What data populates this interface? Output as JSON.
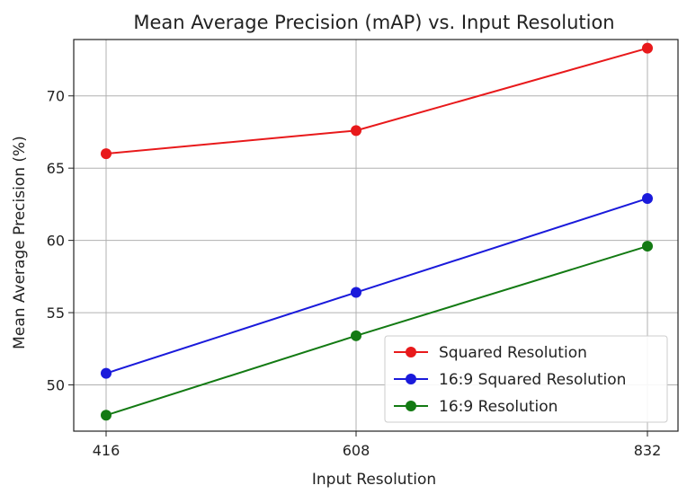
{
  "chart_data": {
    "type": "line",
    "title": "Mean Average Precision (mAP) vs. Input Resolution",
    "xlabel": "Input Resolution",
    "ylabel": "Mean Average Precision (%)",
    "categories": [
      "416",
      "608",
      "832"
    ],
    "yticks": [
      "50",
      "55",
      "60",
      "65",
      "70"
    ],
    "ytick_values": [
      50,
      55,
      60,
      65,
      70
    ],
    "ylim": [
      46.8,
      73.9
    ],
    "grid": true,
    "legend_position": "lower-right",
    "series": [
      {
        "name": "Squared Resolution",
        "values": [
          66.0,
          67.6,
          73.3
        ],
        "color": "#e8191b"
      },
      {
        "name": "16:9 Squared Resolution",
        "values": [
          50.8,
          56.4,
          62.9
        ],
        "color": "#1a1adb"
      },
      {
        "name": "16:9 Resolution",
        "values": [
          47.9,
          53.4,
          59.6
        ],
        "color": "#137a13"
      }
    ]
  }
}
